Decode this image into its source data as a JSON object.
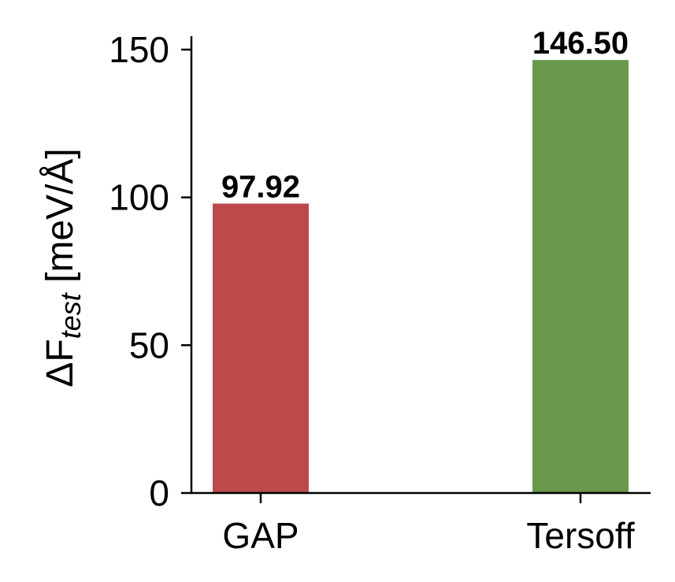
{
  "chart_data": {
    "type": "bar",
    "categories": [
      "GAP",
      "Tersoff"
    ],
    "values": [
      97.92,
      146.5
    ],
    "data_labels": [
      "97.92",
      "146.50"
    ],
    "colors": [
      "#bc4a4a",
      "#6a984d"
    ],
    "title": "",
    "xlabel": "",
    "ylabel": {
      "prefix": "ΔF",
      "subscript": "test",
      "suffix": " [meV/Å]"
    },
    "ylim": [
      0,
      150
    ],
    "yticks": [
      0,
      50,
      100,
      150
    ],
    "ytick_labels": [
      "0",
      "50",
      "100",
      "150"
    ],
    "grid": false,
    "legend": "none"
  }
}
